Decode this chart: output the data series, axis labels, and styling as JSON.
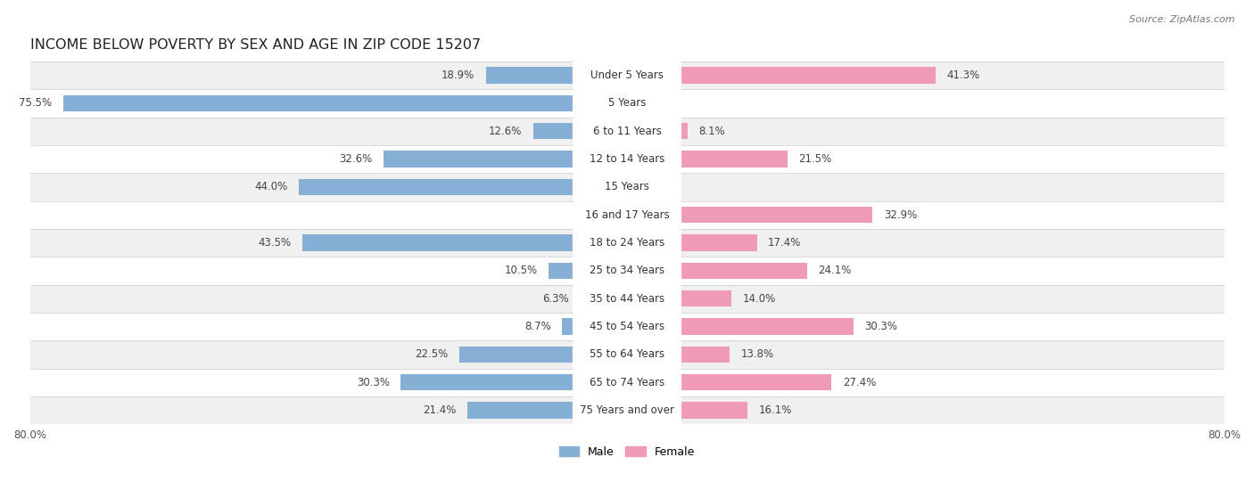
{
  "title": "INCOME BELOW POVERTY BY SEX AND AGE IN ZIP CODE 15207",
  "source": "Source: ZipAtlas.com",
  "categories": [
    "Under 5 Years",
    "5 Years",
    "6 to 11 Years",
    "12 to 14 Years",
    "15 Years",
    "16 and 17 Years",
    "18 to 24 Years",
    "25 to 34 Years",
    "35 to 44 Years",
    "45 to 54 Years",
    "55 to 64 Years",
    "65 to 74 Years",
    "75 Years and over"
  ],
  "male_values": [
    18.9,
    75.5,
    12.6,
    32.6,
    44.0,
    0.0,
    43.5,
    10.5,
    6.3,
    8.7,
    22.5,
    30.3,
    21.4
  ],
  "female_values": [
    41.3,
    0.0,
    8.1,
    21.5,
    0.0,
    32.9,
    17.4,
    24.1,
    14.0,
    30.3,
    13.8,
    27.4,
    16.1
  ],
  "male_color": "#85afd4",
  "female_color": "#f09bb5",
  "male_color_dark": "#5b8dc0",
  "female_color_dark": "#e8607a",
  "xlim": 80.0,
  "bar_height": 0.58,
  "row_bg_even": "#f0f0f0",
  "row_bg_odd": "#ffffff",
  "title_fontsize": 11.5,
  "label_fontsize": 8.5,
  "value_fontsize": 8.5,
  "axis_fontsize": 8.5,
  "legend_fontsize": 9,
  "source_fontsize": 8
}
